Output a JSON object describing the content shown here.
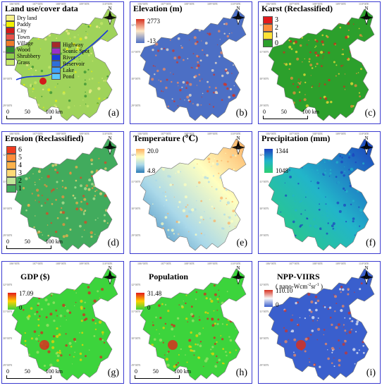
{
  "north_label": "N",
  "scale": {
    "ticks": [
      "0",
      "50",
      "100 km"
    ]
  },
  "lon_ticks": [
    "106°00'E",
    "107°00'E",
    "108°00'E",
    "109°00'E",
    "110°00'E"
  ],
  "lat_ticks": [
    "32°00'N",
    "31°00'N",
    "30°00'N",
    "29°00'N"
  ],
  "panels": [
    {
      "id": "a",
      "title": "Land use/cover data",
      "letter": "(a)",
      "legend_col1": [
        {
          "label": "Dry land",
          "color": "#f5f08a"
        },
        {
          "label": "Paddy",
          "color": "#f2f200"
        },
        {
          "label": "City",
          "color": "#d21a1a"
        },
        {
          "label": "Town",
          "color": "#e8524a"
        },
        {
          "label": "Village",
          "color": "#f07a2a"
        },
        {
          "label": "Wood",
          "color": "#2e8b2e"
        },
        {
          "label": "Shrubbery",
          "color": "#8fce4a"
        },
        {
          "label": "Grass",
          "color": "#c7e86a"
        }
      ],
      "legend_col2": [
        {
          "label": "Highway",
          "color": "#a52a2a"
        },
        {
          "label": "Scenic Spot",
          "color": "#9b30c8"
        },
        {
          "label": "River",
          "color": "#1a3ad8"
        },
        {
          "label": "Reservoir",
          "color": "#2f6fd8"
        },
        {
          "label": "Lake",
          "color": "#3da0ff"
        },
        {
          "label": "Pond",
          "color": "#5ac8ff"
        }
      ]
    },
    {
      "id": "b",
      "title": "Elevation (m)",
      "letter": "(b)",
      "max": "2773",
      "min": "-13",
      "colors": [
        "#d7301f",
        "#fee8c8",
        "#4c6fc5"
      ]
    },
    {
      "id": "c",
      "title": "Karst (Reclassified)",
      "letter": "(c)",
      "classes": [
        {
          "label": "3",
          "color": "#e31a1c"
        },
        {
          "label": "2",
          "color": "#fd8d3c"
        },
        {
          "label": "1",
          "color": "#ffe135"
        },
        {
          "label": "0",
          "color": "#2ca02c"
        }
      ]
    },
    {
      "id": "d",
      "title": "Erosion (Reclassified)",
      "letter": "(d)",
      "classes": [
        {
          "label": "6",
          "color": "#f03b20"
        },
        {
          "label": "5",
          "color": "#fd8d3c"
        },
        {
          "label": "4",
          "color": "#fdb24c"
        },
        {
          "label": "3",
          "color": "#fed976"
        },
        {
          "label": "2",
          "color": "#c2e699"
        },
        {
          "label": "1",
          "color": "#41ab5d"
        }
      ]
    },
    {
      "id": "e",
      "title": "Temperature (℃)",
      "letter": "(e)",
      "max": "20.0",
      "min": "4.8",
      "colors": [
        "#fdae61",
        "#ffffbf",
        "#abd9e9",
        "#2c7bb6"
      ]
    },
    {
      "id": "f",
      "title": "Precipitation (mm)",
      "letter": "(f)",
      "max": "1344",
      "min": "1048",
      "colors": [
        "#1d3fbf",
        "#22b5c9",
        "#2ccf73"
      ]
    },
    {
      "id": "g",
      "title": "GDP ($)",
      "letter": "(g)",
      "max": "17.09",
      "min": "0",
      "colors": [
        "#e31a1c",
        "#ffd000",
        "#3cd43c"
      ]
    },
    {
      "id": "h",
      "title": "Population",
      "letter": "(h)",
      "max": "31.48",
      "min": "0",
      "colors": [
        "#e31a1c",
        "#ffd000",
        "#3cd43c"
      ]
    },
    {
      "id": "i",
      "title": "NPP-VIIRS",
      "subtitle_pre": "( nano-Wcm",
      "subtitle_sup1": "-2",
      "subtitle_mid": "sr",
      "subtitle_sup2": "-1",
      "subtitle_post": " )",
      "letter": "(i)",
      "max": "110.10",
      "min": "0",
      "colors": [
        "#d7301f",
        "#f7f7f7",
        "#3a5fcd"
      ]
    }
  ]
}
